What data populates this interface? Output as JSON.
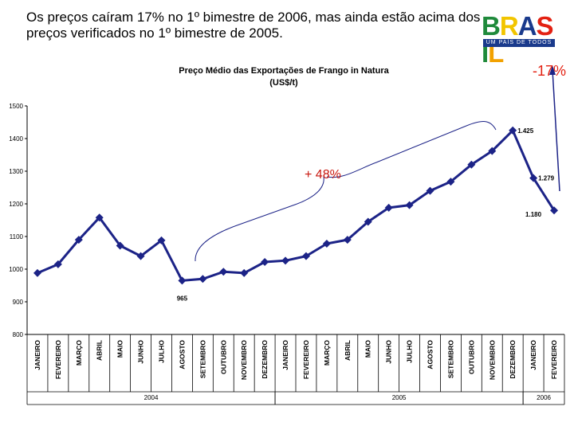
{
  "headline": {
    "line1": "Os preços caíram 17% no 1º bimestre de 2006, mas ainda estão acima dos",
    "line2": "preços verificados no 1º  bimestre de 2005."
  },
  "logo": {
    "letters": [
      "B",
      "R",
      "A",
      "S",
      "I",
      "L"
    ],
    "letter_colors": [
      "#1f8a3b",
      "#f2c500",
      "#1a3a8c",
      "#e32112",
      "#1f8a3b",
      "#f2a100"
    ],
    "tagline": "UM PAÍS DE TODOS"
  },
  "drop_label": "-17%",
  "chart_data": {
    "type": "line",
    "title": "Preço Médio das Exportações de Frango in Natura",
    "subtitle": "(US$/t)",
    "ylim": [
      800,
      1500
    ],
    "yticks": [
      800,
      900,
      1000,
      1100,
      1200,
      1300,
      1400,
      1500
    ],
    "grid": false,
    "categories": [
      "JANEIRO",
      "FEVEREIRO",
      "MARÇO",
      "ABRIL",
      "MAIO",
      "JUNHO",
      "JULHO",
      "AGOSTO",
      "SETEMBRO",
      "OUTUBRO",
      "NOVEMBRO",
      "DEZEMBRO",
      "JANEIRO",
      "FEVEREIRO",
      "MARÇO",
      "ABRIL",
      "MAIO",
      "JUNHO",
      "JULHO",
      "AGOSTO",
      "SETEMBRO",
      "OUTUBRO",
      "NOVEMBRO",
      "DEZEMBRO",
      "JANEIRO",
      "FEVEREIRO"
    ],
    "years": [
      {
        "label": "2004",
        "start": 0,
        "end": 11
      },
      {
        "label": "2005",
        "start": 12,
        "end": 23
      },
      {
        "label": "2006",
        "start": 24,
        "end": 25
      }
    ],
    "series": [
      {
        "name": "Preço médio (US$/t)",
        "color": "#1c2387",
        "values": [
          988,
          1015,
          1090,
          1158,
          1072,
          1040,
          1088,
          965,
          970,
          992,
          988,
          1022,
          1026,
          1040,
          1078,
          1090,
          1145,
          1188,
          1196,
          1240,
          1268,
          1320,
          1362,
          1425,
          1279,
          1180
        ]
      }
    ],
    "data_labels": [
      {
        "index": 7,
        "text": "965",
        "pos": "below"
      },
      {
        "index": 23,
        "text": "1.425",
        "pos": "right"
      },
      {
        "index": 24,
        "text": "1.279",
        "pos": "right"
      },
      {
        "index": 25,
        "text": "1.180",
        "pos": "left-below"
      }
    ],
    "annotations": [
      {
        "text": "+ 48%"
      }
    ]
  }
}
